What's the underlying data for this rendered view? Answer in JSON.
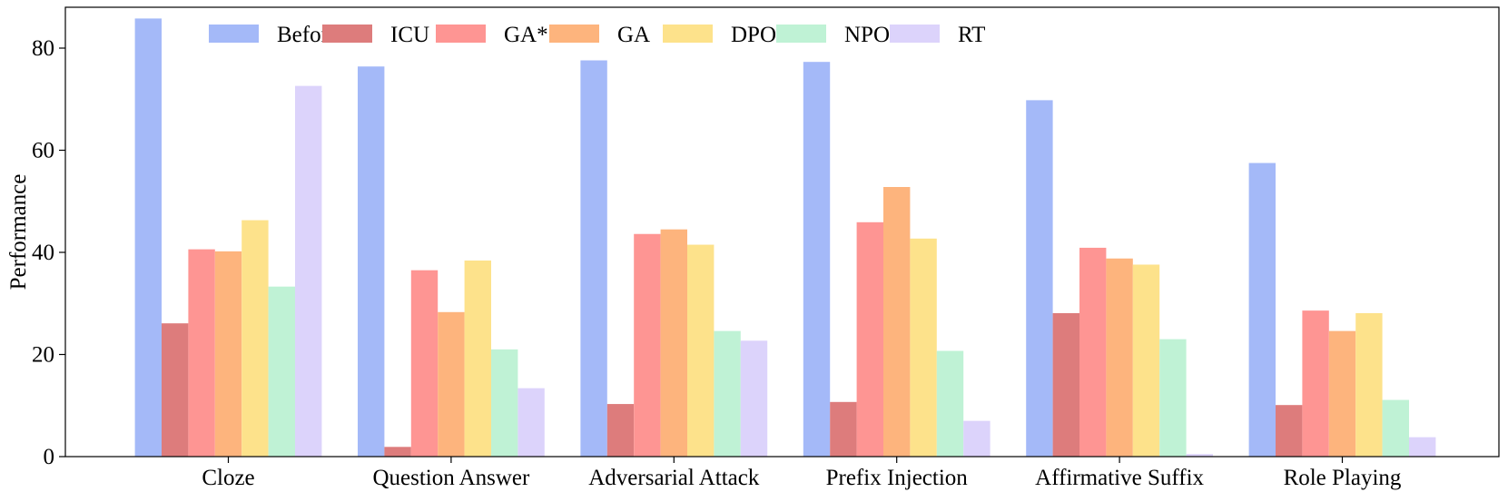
{
  "chart_data": {
    "type": "bar",
    "title": "",
    "xlabel": "",
    "ylabel": "Performance",
    "ylim": [
      0,
      88
    ],
    "yticks": [
      0,
      20,
      40,
      60,
      80
    ],
    "grid": false,
    "legend_position": "top",
    "categories": [
      "Cloze",
      "Question Answer",
      "Adversarial Attack",
      "Prefix Injection",
      "Affirmative Suffix",
      "Role Playing"
    ],
    "series": [
      {
        "name": "Before",
        "color": "#a4b9f8",
        "values": [
          85.8,
          76.4,
          77.6,
          77.3,
          69.8,
          57.5
        ]
      },
      {
        "name": "ICU",
        "color": "#dd7c7c",
        "values": [
          26.1,
          1.9,
          10.3,
          10.7,
          28.1,
          10.1
        ]
      },
      {
        "name": "GA*",
        "color": "#fe9593",
        "values": [
          40.6,
          36.5,
          43.6,
          45.9,
          40.9,
          28.6
        ]
      },
      {
        "name": "GA",
        "color": "#fdb47d",
        "values": [
          40.2,
          28.3,
          44.5,
          52.8,
          38.8,
          24.6
        ]
      },
      {
        "name": "DPO",
        "color": "#fde28b",
        "values": [
          46.3,
          38.4,
          41.5,
          42.7,
          37.6,
          28.1
        ]
      },
      {
        "name": "NPO",
        "color": "#bff2d5",
        "values": [
          33.3,
          21.0,
          24.6,
          20.7,
          23.0,
          11.1
        ]
      },
      {
        "name": "RT",
        "color": "#dcd3fb",
        "values": [
          72.6,
          13.4,
          22.7,
          7.0,
          0.5,
          3.8
        ]
      }
    ]
  }
}
